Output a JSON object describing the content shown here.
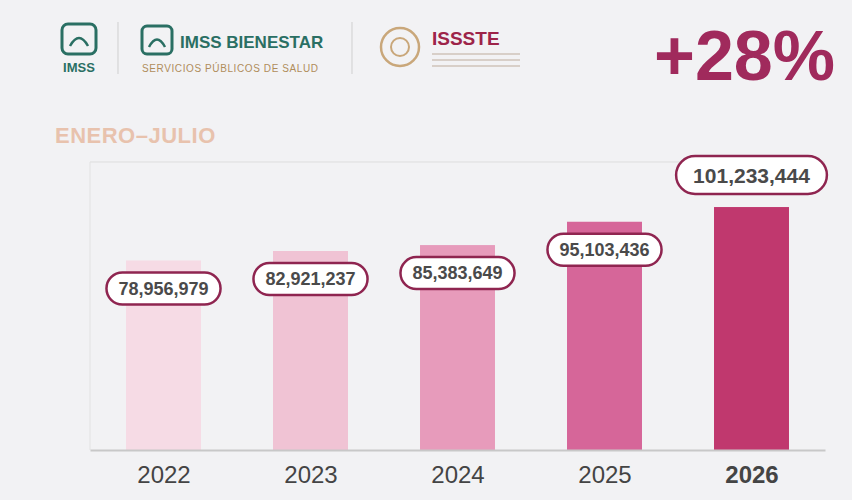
{
  "chart_data": {
    "type": "bar",
    "title": "ENERO–JULIO",
    "annotations": [
      "IMSS",
      "IMSS BIENESTAR",
      "SERVICIOS PÚBLICOS DE SALUD",
      "ISSSTE",
      "+28%"
    ],
    "categories": [
      "2022",
      "2023",
      "2024",
      "2025",
      "2026"
    ],
    "values": [
      78956979,
      82921237,
      85383649,
      95103436,
      101233444
    ],
    "value_labels": [
      "78,956,979",
      "82,921,237",
      "85,383,649",
      "95,103,436",
      "101,233,444"
    ],
    "colors": [
      "#f6dbe5",
      "#f0c3d4",
      "#e79bbb",
      "#d66699",
      "#c0386e"
    ],
    "ylim": [
      0,
      120000000
    ],
    "data_labels": true,
    "tick_labels": "x",
    "grid": false
  }
}
